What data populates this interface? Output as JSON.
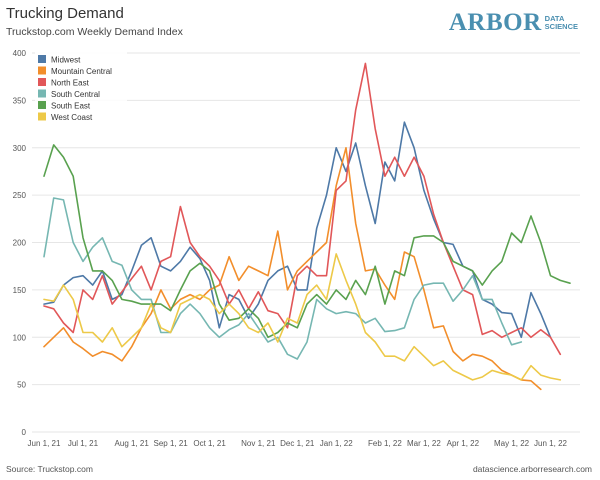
{
  "header": {
    "title": "Trucking Demand",
    "subtitle": "Truckstop.com Weekly Demand Index"
  },
  "logo": {
    "word": "ARBOR",
    "tag_line1": "DATA",
    "tag_line2": "SCIENCE",
    "color": "#4a8fb0"
  },
  "footer": {
    "source": "Source: Truckstop.com",
    "url": "datascience.arborresearch.com"
  },
  "chart_data": {
    "type": "line",
    "title": "Trucking Demand",
    "subtitle": "Truckstop.com Weekly Demand Index",
    "xlabel": "",
    "ylabel": "",
    "ylim": [
      0,
      400
    ],
    "yticks": [
      0,
      50,
      100,
      150,
      200,
      250,
      300,
      350,
      400
    ],
    "grid": true,
    "legend_position": "top-left",
    "xtick_labels": [
      {
        "label": "Jun 1, 21",
        "week": 0
      },
      {
        "label": "Jul 1, 21",
        "week": 4
      },
      {
        "label": "Aug 1, 21",
        "week": 9
      },
      {
        "label": "Sep 1, 21",
        "week": 13
      },
      {
        "label": "Oct 1, 21",
        "week": 17
      },
      {
        "label": "Nov 1, 21",
        "week": 22
      },
      {
        "label": "Dec 1, 21",
        "week": 26
      },
      {
        "label": "Jan 1, 22",
        "week": 30
      },
      {
        "label": "Feb 1, 22",
        "week": 35
      },
      {
        "label": "Mar 1, 22",
        "week": 39
      },
      {
        "label": "Apr 1, 22",
        "week": 43
      },
      {
        "label": "May 1, 22",
        "week": 48
      },
      {
        "label": "Jun 1, 22",
        "week": 52
      }
    ],
    "series": [
      {
        "name": "Midwest",
        "color": "#4e79a7",
        "values": [
          135,
          137,
          155,
          163,
          165,
          155,
          170,
          140,
          145,
          170,
          197,
          205,
          175,
          170,
          180,
          195,
          183,
          160,
          110,
          145,
          140,
          120,
          135,
          160,
          170,
          175,
          150,
          150,
          215,
          250,
          300,
          275,
          305,
          260,
          220,
          285,
          265,
          327,
          300,
          255,
          225,
          200,
          198,
          175,
          170,
          140,
          135,
          126,
          125,
          100,
          147,
          125,
          100
        ]
      },
      {
        "name": "Mountain Central",
        "color": "#f28e2b",
        "values": [
          90,
          100,
          110,
          95,
          88,
          80,
          85,
          82,
          75,
          90,
          110,
          125,
          150,
          130,
          140,
          145,
          140,
          150,
          155,
          185,
          160,
          175,
          170,
          165,
          212,
          150,
          170,
          180,
          190,
          200,
          260,
          300,
          220,
          170,
          172,
          155,
          140,
          190,
          185,
          150,
          110,
          112,
          85,
          75,
          82,
          80,
          75,
          65,
          60,
          55,
          54,
          45
        ]
      },
      {
        "name": "North East",
        "color": "#e15759",
        "values": [
          133,
          130,
          115,
          105,
          150,
          140,
          165,
          135,
          148,
          162,
          175,
          150,
          180,
          185,
          238,
          200,
          185,
          175,
          160,
          135,
          150,
          130,
          148,
          128,
          125,
          110,
          165,
          175,
          165,
          165,
          255,
          265,
          340,
          389,
          320,
          270,
          290,
          270,
          290,
          270,
          230,
          200,
          175,
          150,
          145,
          103,
          107,
          100,
          105,
          110,
          100,
          108,
          100,
          82
        ]
      },
      {
        "name": "South Central",
        "color": "#76b7b2",
        "values": [
          185,
          247,
          245,
          200,
          180,
          195,
          205,
          180,
          176,
          150,
          140,
          140,
          105,
          105,
          125,
          135,
          125,
          110,
          100,
          108,
          113,
          125,
          110,
          95,
          100,
          82,
          77,
          95,
          140,
          130,
          125,
          127,
          125,
          115,
          120,
          106,
          107,
          110,
          140,
          155,
          157,
          157,
          138,
          150,
          165,
          140,
          140,
          115,
          92,
          95
        ]
      },
      {
        "name": "South East",
        "color": "#59a14f",
        "values": [
          270,
          303,
          290,
          270,
          205,
          170,
          170,
          160,
          140,
          138,
          135,
          135,
          135,
          128,
          150,
          170,
          178,
          170,
          135,
          118,
          120,
          130,
          120,
          100,
          105,
          115,
          110,
          135,
          145,
          135,
          150,
          140,
          160,
          145,
          175,
          135,
          170,
          165,
          205,
          207,
          207,
          200,
          180,
          175,
          170,
          155,
          170,
          180,
          210,
          200,
          228,
          200,
          165,
          160,
          157
        ]
      },
      {
        "name": "West Coast",
        "color": "#edc948",
        "values": [
          140,
          138,
          155,
          140,
          105,
          105,
          95,
          110,
          90,
          100,
          110,
          135,
          110,
          105,
          135,
          140,
          145,
          140,
          125,
          135,
          125,
          110,
          105,
          115,
          95,
          120,
          115,
          145,
          155,
          140,
          188,
          160,
          135,
          105,
          95,
          80,
          80,
          75,
          90,
          80,
          70,
          75,
          65,
          60,
          55,
          58,
          65,
          62,
          60,
          55,
          70,
          60,
          57,
          55
        ]
      }
    ]
  }
}
